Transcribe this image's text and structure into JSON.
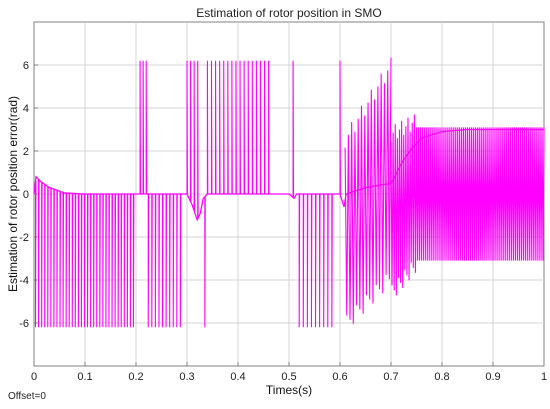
{
  "chart_data": {
    "type": "line",
    "title": "Estimation of rotor position in SMO",
    "xlabel": "Times(s)",
    "ylabel": "Estimation of rotor position error(rad)",
    "xlim": [
      0,
      1
    ],
    "ylim": [
      -8,
      8
    ],
    "x_ticks": [
      "0",
      "0.1",
      "0.2",
      "0.3",
      "0.4",
      "0.5",
      "0.6",
      "0.7",
      "0.8",
      "0.9",
      "1"
    ],
    "y_ticks": [
      "-6",
      "-4",
      "-2",
      "0",
      "2",
      "4",
      "6"
    ],
    "grid": true,
    "line_color": "#FF00FF",
    "background": "#FFFFFF",
    "footer": "Offset=0",
    "series": [
      {
        "description": "error trace",
        "baseline_points": [
          [
            0.0,
            0.0
          ],
          [
            0.004,
            0.8
          ],
          [
            0.012,
            0.6
          ],
          [
            0.03,
            0.3
          ],
          [
            0.06,
            0.05
          ],
          [
            0.1,
            0.0
          ],
          [
            0.2,
            0.0
          ],
          [
            0.3,
            0.0
          ],
          [
            0.31,
            -0.5
          ],
          [
            0.32,
            -1.2
          ],
          [
            0.326,
            -0.9
          ],
          [
            0.332,
            -0.2
          ],
          [
            0.34,
            0.0
          ],
          [
            0.5,
            0.0
          ],
          [
            0.51,
            -0.2
          ],
          [
            0.515,
            0.0
          ],
          [
            0.6,
            0.0
          ],
          [
            0.608,
            -0.6
          ],
          [
            0.612,
            0.0
          ],
          [
            0.65,
            0.3
          ],
          [
            0.7,
            0.5
          ],
          [
            0.72,
            1.4
          ],
          [
            0.74,
            2.1
          ],
          [
            0.76,
            2.6
          ],
          [
            0.8,
            2.9
          ],
          [
            0.85,
            3.0
          ],
          [
            1.0,
            3.0
          ]
        ],
        "spike_groups": [
          {
            "from": 0.003,
            "to": 0.2,
            "spacing": 0.006,
            "spike_to": -6.2
          },
          {
            "from": 0.208,
            "to": 0.22,
            "spacing": 0.006,
            "spike_to": 6.2
          },
          {
            "from": 0.224,
            "to": 0.29,
            "spacing": 0.007,
            "spike_to": -6.2
          },
          {
            "from": 0.3,
            "to": 0.322,
            "spacing": 0.007,
            "spike_to": 6.2
          },
          {
            "from": 0.335,
            "to": 0.335,
            "spacing": 0.01,
            "spike_to": -6.2
          },
          {
            "from": 0.34,
            "to": 0.462,
            "spacing": 0.008,
            "spike_to": 6.2
          },
          {
            "from": 0.508,
            "to": 0.51,
            "spacing": 0.01,
            "spike_to": 6.2
          },
          {
            "from": 0.52,
            "to": 0.59,
            "spacing": 0.008,
            "spike_to": -6.2
          },
          {
            "from": 0.6,
            "to": 0.6,
            "spacing": 0.01,
            "spike_to": 6.2
          }
        ],
        "oscillation_groups": [
          {
            "from": 0.61,
            "to": 0.7,
            "count": 14,
            "high": [
              2.5,
              6.0
            ],
            "low": [
              -6.0,
              -3.8
            ]
          },
          {
            "from": 0.7,
            "to": 0.75,
            "count": 12,
            "high": [
              2.8,
              3.4
            ],
            "low": [
              -4.6,
              -3.2
            ]
          },
          {
            "from": 0.75,
            "to": 1.0,
            "count": 65,
            "high": [
              3.1,
              3.1
            ],
            "low": [
              -3.1,
              -3.1
            ]
          }
        ]
      }
    ]
  }
}
